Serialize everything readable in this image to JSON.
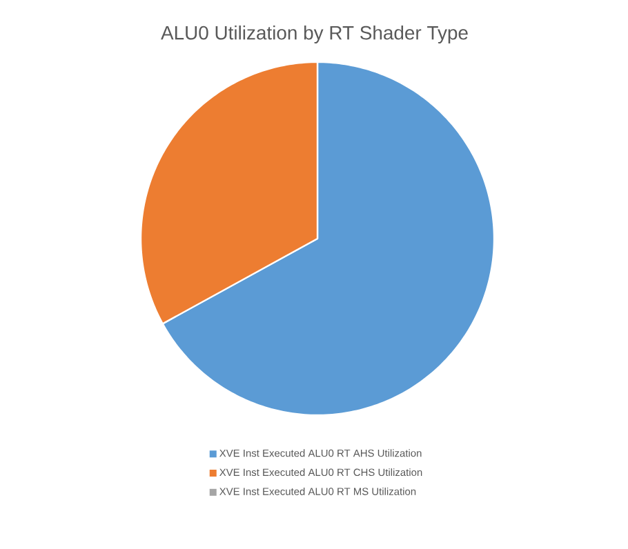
{
  "chart_data": {
    "type": "pie",
    "title": "ALU0 Utilization by RT Shader Type",
    "categories": [
      "XVE Inst Executed ALU0 RT AHS Utilization",
      "XVE Inst Executed ALU0 RT CHS Utilization",
      "XVE Inst Executed ALU0 RT MS Utilization"
    ],
    "values": [
      67,
      33,
      0
    ],
    "colors": [
      "#5b9bd5",
      "#ed7d31",
      "#a5a5a5"
    ],
    "legend": "bottom"
  }
}
